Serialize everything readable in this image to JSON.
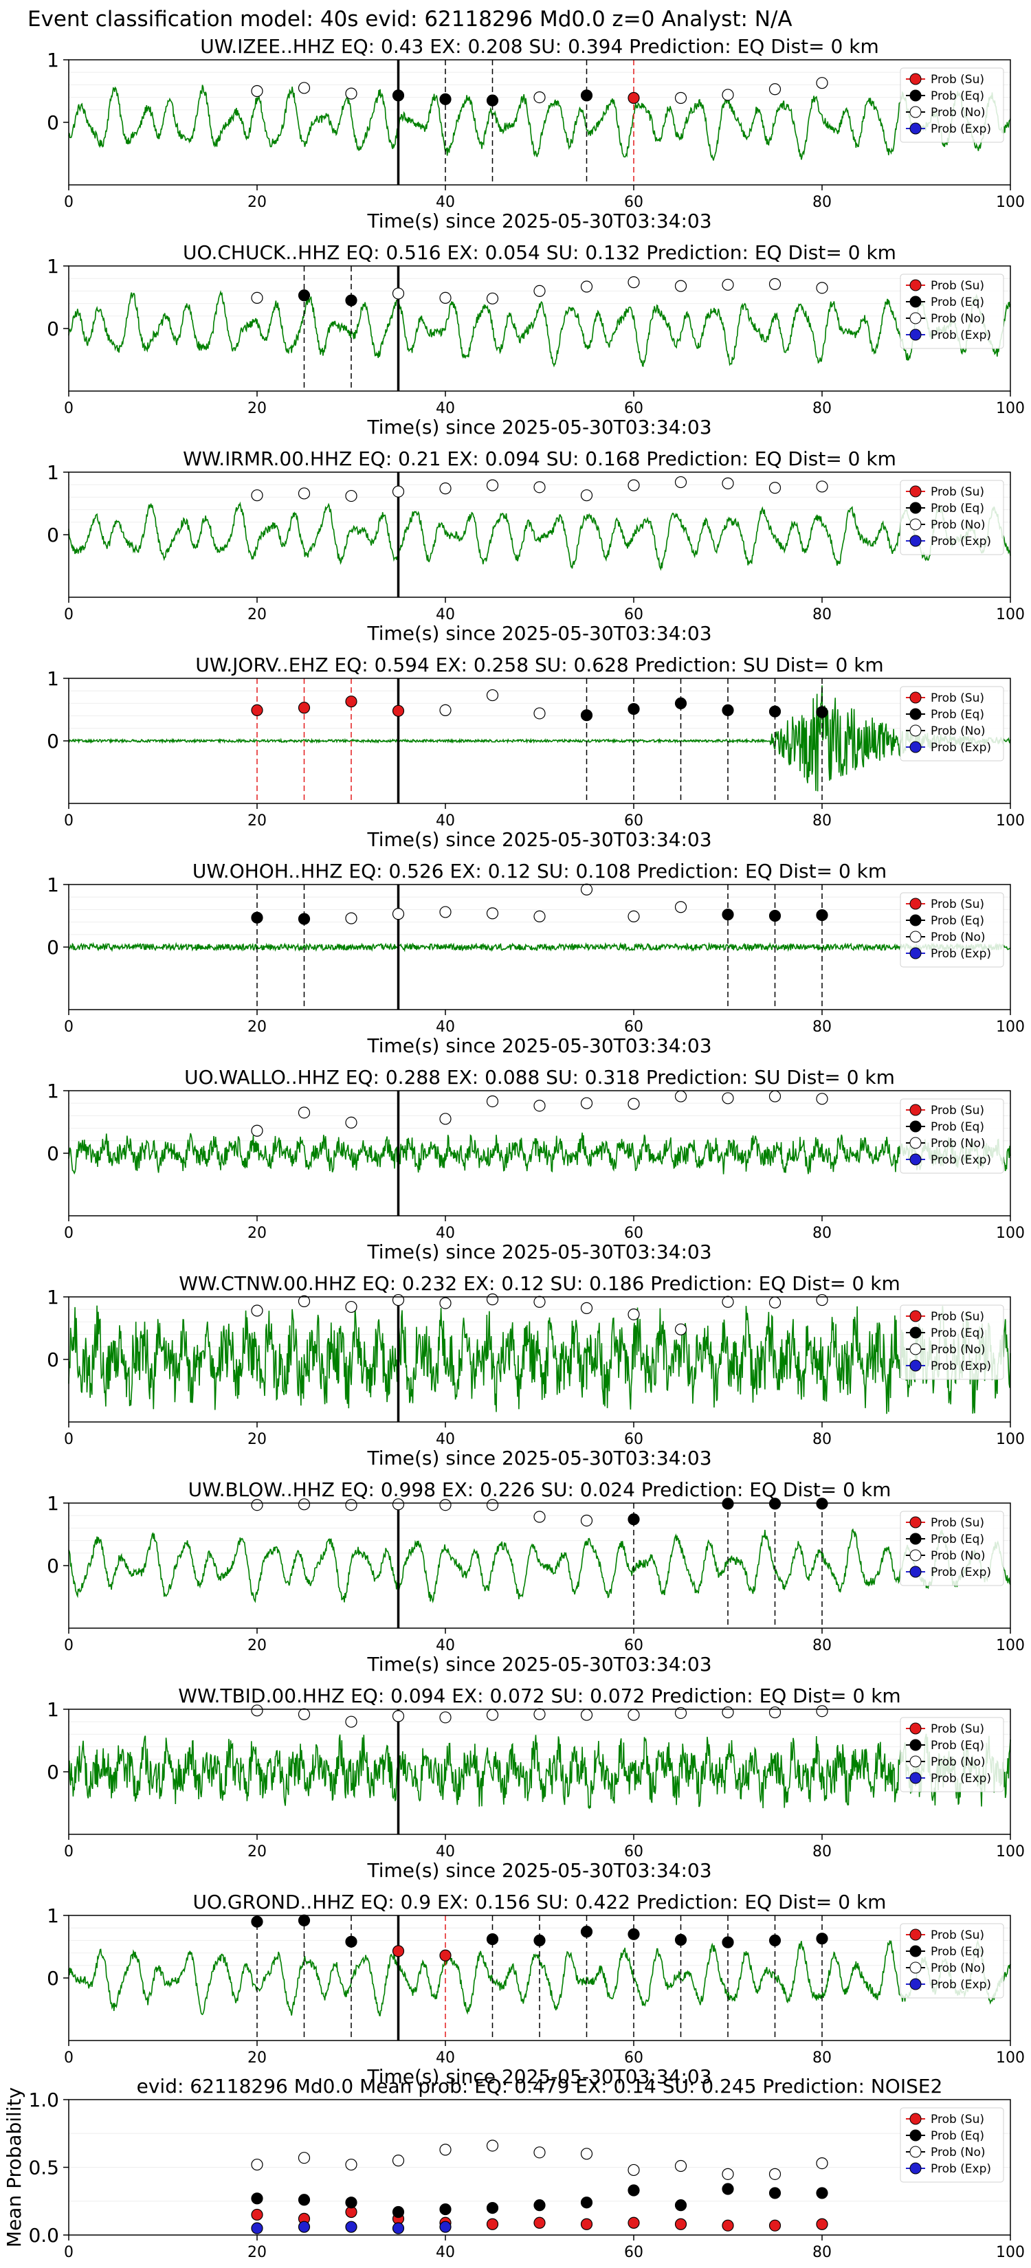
{
  "figure_title": "Event classification model: 40s evid: 62118296 Md0.0 z=0 Analyst: N/A",
  "legend_labels": [
    "Prob (Su)",
    "Prob (Eq)",
    "Prob (No)",
    "Prob (Exp)"
  ],
  "colors": {
    "su": "#e31a1c",
    "eq": "#000000",
    "no": "#ffffff",
    "exp": "#1f1fcf",
    "waveform": "#008000",
    "pick": "#000000"
  },
  "chart_data": [
    {
      "type": "scatter",
      "title": "UW.IZEE..HHZ   EQ: 0.43  EX: 0.208  SU: 0.394   Prediction: EQ    Dist= 0 km",
      "xlabel": "Time(s) since 2025-05-30T03:34:03",
      "xlim": [
        0,
        100
      ],
      "ylim": [
        -1,
        1
      ],
      "x_ticks": [
        "0",
        "20",
        "40",
        "60",
        "80",
        "100"
      ],
      "y_ticks": [
        "0",
        "1"
      ],
      "pick_time": 35,
      "waveform": {
        "style": "smooth",
        "amplitude": 0.55
      },
      "points": [
        {
          "x": 20,
          "y": 0.5,
          "class": "no"
        },
        {
          "x": 25,
          "y": 0.55,
          "class": "no"
        },
        {
          "x": 30,
          "y": 0.46,
          "class": "no"
        },
        {
          "x": 35,
          "y": 0.43,
          "class": "eq"
        },
        {
          "x": 40,
          "y": 0.37,
          "class": "eq"
        },
        {
          "x": 45,
          "y": 0.35,
          "class": "eq"
        },
        {
          "x": 50,
          "y": 0.4,
          "class": "no"
        },
        {
          "x": 55,
          "y": 0.43,
          "class": "eq"
        },
        {
          "x": 60,
          "y": 0.39,
          "class": "su"
        },
        {
          "x": 65,
          "y": 0.39,
          "class": "no"
        },
        {
          "x": 70,
          "y": 0.44,
          "class": "no"
        },
        {
          "x": 75,
          "y": 0.53,
          "class": "no"
        },
        {
          "x": 80,
          "y": 0.63,
          "class": "no"
        }
      ]
    },
    {
      "type": "scatter",
      "title": "UO.CHUCK..HHZ   EQ: 0.516  EX: 0.054  SU: 0.132   Prediction: EQ    Dist= 0 km",
      "xlabel": "Time(s) since 2025-05-30T03:34:03",
      "xlim": [
        0,
        100
      ],
      "ylim": [
        -1,
        1
      ],
      "x_ticks": [
        "0",
        "20",
        "40",
        "60",
        "80",
        "100"
      ],
      "y_ticks": [
        "0",
        "1"
      ],
      "pick_time": 35,
      "waveform": {
        "style": "smooth",
        "amplitude": 0.55
      },
      "points": [
        {
          "x": 20,
          "y": 0.49,
          "class": "no"
        },
        {
          "x": 25,
          "y": 0.53,
          "class": "eq"
        },
        {
          "x": 30,
          "y": 0.45,
          "class": "eq"
        },
        {
          "x": 35,
          "y": 0.56,
          "class": "no"
        },
        {
          "x": 40,
          "y": 0.49,
          "class": "no"
        },
        {
          "x": 45,
          "y": 0.48,
          "class": "no"
        },
        {
          "x": 50,
          "y": 0.6,
          "class": "no"
        },
        {
          "x": 55,
          "y": 0.67,
          "class": "no"
        },
        {
          "x": 60,
          "y": 0.74,
          "class": "no"
        },
        {
          "x": 65,
          "y": 0.68,
          "class": "no"
        },
        {
          "x": 70,
          "y": 0.7,
          "class": "no"
        },
        {
          "x": 75,
          "y": 0.71,
          "class": "no"
        },
        {
          "x": 80,
          "y": 0.65,
          "class": "no"
        }
      ]
    },
    {
      "type": "scatter",
      "title": "WW.IRMR.00.HHZ   EQ: 0.21  EX: 0.094  SU: 0.168   Prediction: EQ    Dist= 0 km",
      "xlabel": "Time(s) since 2025-05-30T03:34:03",
      "xlim": [
        0,
        100
      ],
      "ylim": [
        -1,
        1
      ],
      "x_ticks": [
        "0",
        "20",
        "40",
        "60",
        "80",
        "100"
      ],
      "y_ticks": [
        "0",
        "1"
      ],
      "pick_time": 35,
      "waveform": {
        "style": "smooth",
        "amplitude": 0.5
      },
      "points": [
        {
          "x": 20,
          "y": 0.63,
          "class": "no"
        },
        {
          "x": 25,
          "y": 0.66,
          "class": "no"
        },
        {
          "x": 30,
          "y": 0.62,
          "class": "no"
        },
        {
          "x": 35,
          "y": 0.69,
          "class": "no"
        },
        {
          "x": 40,
          "y": 0.74,
          "class": "no"
        },
        {
          "x": 45,
          "y": 0.79,
          "class": "no"
        },
        {
          "x": 50,
          "y": 0.76,
          "class": "no"
        },
        {
          "x": 55,
          "y": 0.63,
          "class": "no"
        },
        {
          "x": 60,
          "y": 0.79,
          "class": "no"
        },
        {
          "x": 65,
          "y": 0.84,
          "class": "no"
        },
        {
          "x": 70,
          "y": 0.82,
          "class": "no"
        },
        {
          "x": 75,
          "y": 0.75,
          "class": "no"
        },
        {
          "x": 80,
          "y": 0.77,
          "class": "no"
        }
      ]
    },
    {
      "type": "scatter",
      "title": "UW.JORV..EHZ   EQ: 0.594  EX: 0.258  SU: 0.628   Prediction: SU    Dist= 0 km",
      "xlabel": "Time(s) since 2025-05-30T03:34:03",
      "xlim": [
        0,
        100
      ],
      "ylim": [
        -1,
        1
      ],
      "x_ticks": [
        "0",
        "20",
        "40",
        "60",
        "80",
        "100"
      ],
      "y_ticks": [
        "0",
        "1"
      ],
      "pick_time": 35,
      "waveform": {
        "style": "flat_burst",
        "amplitude": 0.02,
        "burst_start": 74,
        "burst_peak": 80,
        "burst_amplitude": 0.9
      },
      "points": [
        {
          "x": 20,
          "y": 0.49,
          "class": "su"
        },
        {
          "x": 25,
          "y": 0.53,
          "class": "su"
        },
        {
          "x": 30,
          "y": 0.63,
          "class": "su"
        },
        {
          "x": 35,
          "y": 0.48,
          "class": "su"
        },
        {
          "x": 40,
          "y": 0.49,
          "class": "no"
        },
        {
          "x": 45,
          "y": 0.73,
          "class": "no"
        },
        {
          "x": 50,
          "y": 0.44,
          "class": "no"
        },
        {
          "x": 55,
          "y": 0.41,
          "class": "eq"
        },
        {
          "x": 60,
          "y": 0.51,
          "class": "eq"
        },
        {
          "x": 65,
          "y": 0.6,
          "class": "eq"
        },
        {
          "x": 70,
          "y": 0.49,
          "class": "eq"
        },
        {
          "x": 75,
          "y": 0.47,
          "class": "eq"
        },
        {
          "x": 80,
          "y": 0.46,
          "class": "eq"
        }
      ]
    },
    {
      "type": "scatter",
      "title": "UW.OHOH..HHZ   EQ: 0.526  EX: 0.12  SU: 0.108   Prediction: EQ    Dist= 0 km",
      "xlabel": "Time(s) since 2025-05-30T03:34:03",
      "xlim": [
        0,
        100
      ],
      "ylim": [
        -1,
        1
      ],
      "x_ticks": [
        "0",
        "20",
        "40",
        "60",
        "80",
        "100"
      ],
      "y_ticks": [
        "0",
        "1"
      ],
      "pick_time": 35,
      "waveform": {
        "style": "flat",
        "amplitude": 0.05
      },
      "points": [
        {
          "x": 20,
          "y": 0.47,
          "class": "eq"
        },
        {
          "x": 25,
          "y": 0.45,
          "class": "eq"
        },
        {
          "x": 30,
          "y": 0.46,
          "class": "no"
        },
        {
          "x": 35,
          "y": 0.53,
          "class": "no"
        },
        {
          "x": 40,
          "y": 0.56,
          "class": "no"
        },
        {
          "x": 45,
          "y": 0.54,
          "class": "no"
        },
        {
          "x": 50,
          "y": 0.49,
          "class": "no"
        },
        {
          "x": 55,
          "y": 0.92,
          "class": "no"
        },
        {
          "x": 60,
          "y": 0.49,
          "class": "no"
        },
        {
          "x": 65,
          "y": 0.64,
          "class": "no"
        },
        {
          "x": 70,
          "y": 0.52,
          "class": "eq"
        },
        {
          "x": 75,
          "y": 0.5,
          "class": "eq"
        },
        {
          "x": 80,
          "y": 0.51,
          "class": "eq"
        }
      ]
    },
    {
      "type": "scatter",
      "title": "UO.WALLO..HHZ   EQ: 0.288  EX: 0.088  SU: 0.318   Prediction: SU    Dist= 0 km",
      "xlabel": "Time(s) since 2025-05-30T03:34:03",
      "xlim": [
        0,
        100
      ],
      "ylim": [
        -1,
        1
      ],
      "x_ticks": [
        "0",
        "20",
        "40",
        "60",
        "80",
        "100"
      ],
      "y_ticks": [
        "0",
        "1"
      ],
      "pick_time": 35,
      "waveform": {
        "style": "noisy",
        "amplitude": 0.3
      },
      "points": [
        {
          "x": 20,
          "y": 0.36,
          "class": "no"
        },
        {
          "x": 25,
          "y": 0.65,
          "class": "no"
        },
        {
          "x": 30,
          "y": 0.49,
          "class": "no"
        },
        {
          "x": 40,
          "y": 0.55,
          "class": "no"
        },
        {
          "x": 45,
          "y": 0.83,
          "class": "no"
        },
        {
          "x": 50,
          "y": 0.76,
          "class": "no"
        },
        {
          "x": 55,
          "y": 0.8,
          "class": "no"
        },
        {
          "x": 60,
          "y": 0.79,
          "class": "no"
        },
        {
          "x": 65,
          "y": 0.91,
          "class": "no"
        },
        {
          "x": 70,
          "y": 0.88,
          "class": "no"
        },
        {
          "x": 75,
          "y": 0.91,
          "class": "no"
        },
        {
          "x": 80,
          "y": 0.87,
          "class": "no"
        }
      ]
    },
    {
      "type": "scatter",
      "title": "WW.CTNW.00.HHZ   EQ: 0.232  EX: 0.12  SU: 0.186   Prediction: EQ    Dist= 0 km",
      "xlabel": "Time(s) since 2025-05-30T03:34:03",
      "xlim": [
        0,
        100
      ],
      "ylim": [
        -1,
        1
      ],
      "x_ticks": [
        "0",
        "20",
        "40",
        "60",
        "80",
        "100"
      ],
      "y_ticks": [
        "0",
        "1"
      ],
      "pick_time": 35,
      "waveform": {
        "style": "noisy",
        "amplitude": 0.8
      },
      "points": [
        {
          "x": 20,
          "y": 0.78,
          "class": "no"
        },
        {
          "x": 25,
          "y": 0.93,
          "class": "no"
        },
        {
          "x": 30,
          "y": 0.84,
          "class": "no"
        },
        {
          "x": 35,
          "y": 0.95,
          "class": "no"
        },
        {
          "x": 40,
          "y": 0.9,
          "class": "no"
        },
        {
          "x": 45,
          "y": 0.96,
          "class": "no"
        },
        {
          "x": 50,
          "y": 0.92,
          "class": "no"
        },
        {
          "x": 55,
          "y": 0.82,
          "class": "no"
        },
        {
          "x": 60,
          "y": 0.72,
          "class": "no"
        },
        {
          "x": 65,
          "y": 0.48,
          "class": "no"
        },
        {
          "x": 70,
          "y": 0.92,
          "class": "no"
        },
        {
          "x": 75,
          "y": 0.91,
          "class": "no"
        },
        {
          "x": 80,
          "y": 0.95,
          "class": "no"
        }
      ]
    },
    {
      "type": "scatter",
      "title": "UW.BLOW..HHZ   EQ: 0.998  EX: 0.226  SU: 0.024   Prediction: EQ    Dist= 0 km",
      "xlabel": "Time(s) since 2025-05-30T03:34:03",
      "xlim": [
        0,
        100
      ],
      "ylim": [
        -1,
        1
      ],
      "x_ticks": [
        "0",
        "20",
        "40",
        "60",
        "80",
        "100"
      ],
      "y_ticks": [
        "0",
        "1"
      ],
      "pick_time": 35,
      "waveform": {
        "style": "smooth",
        "amplitude": 0.55
      },
      "points": [
        {
          "x": 20,
          "y": 0.97,
          "class": "no"
        },
        {
          "x": 25,
          "y": 0.98,
          "class": "no"
        },
        {
          "x": 30,
          "y": 0.97,
          "class": "no"
        },
        {
          "x": 35,
          "y": 0.98,
          "class": "no"
        },
        {
          "x": 40,
          "y": 0.97,
          "class": "no"
        },
        {
          "x": 45,
          "y": 0.97,
          "class": "no"
        },
        {
          "x": 50,
          "y": 0.78,
          "class": "no"
        },
        {
          "x": 55,
          "y": 0.72,
          "class": "no"
        },
        {
          "x": 60,
          "y": 0.74,
          "class": "eq"
        },
        {
          "x": 70,
          "y": 0.99,
          "class": "eq"
        },
        {
          "x": 75,
          "y": 0.99,
          "class": "eq"
        },
        {
          "x": 80,
          "y": 0.99,
          "class": "eq"
        }
      ]
    },
    {
      "type": "scatter",
      "title": "WW.TBID.00.HHZ   EQ: 0.094  EX: 0.072  SU: 0.072   Prediction: EQ    Dist= 0 km",
      "xlabel": "Time(s) since 2025-05-30T03:34:03",
      "xlim": [
        0,
        100
      ],
      "ylim": [
        -1,
        1
      ],
      "x_ticks": [
        "0",
        "20",
        "40",
        "60",
        "80",
        "100"
      ],
      "y_ticks": [
        "0",
        "1"
      ],
      "pick_time": 35,
      "waveform": {
        "style": "noisy",
        "amplitude": 0.55
      },
      "points": [
        {
          "x": 20,
          "y": 0.98,
          "class": "no"
        },
        {
          "x": 25,
          "y": 0.92,
          "class": "no"
        },
        {
          "x": 30,
          "y": 0.8,
          "class": "no"
        },
        {
          "x": 35,
          "y": 0.89,
          "class": "no"
        },
        {
          "x": 40,
          "y": 0.87,
          "class": "no"
        },
        {
          "x": 45,
          "y": 0.91,
          "class": "no"
        },
        {
          "x": 50,
          "y": 0.92,
          "class": "no"
        },
        {
          "x": 55,
          "y": 0.91,
          "class": "no"
        },
        {
          "x": 60,
          "y": 0.91,
          "class": "no"
        },
        {
          "x": 65,
          "y": 0.94,
          "class": "no"
        },
        {
          "x": 70,
          "y": 0.95,
          "class": "no"
        },
        {
          "x": 75,
          "y": 0.95,
          "class": "no"
        },
        {
          "x": 80,
          "y": 0.97,
          "class": "no"
        }
      ]
    },
    {
      "type": "scatter",
      "title": "UO.GROND..HHZ   EQ: 0.9  EX: 0.156  SU: 0.422   Prediction: EQ    Dist= 0 km",
      "xlabel": "Time(s) since 2025-05-30T03:34:03",
      "xlim": [
        0,
        100
      ],
      "ylim": [
        -1,
        1
      ],
      "x_ticks": [
        "0",
        "20",
        "40",
        "60",
        "80",
        "100"
      ],
      "y_ticks": [
        "0",
        "1"
      ],
      "pick_time": 35,
      "waveform": {
        "style": "smooth",
        "amplitude": 0.55
      },
      "points": [
        {
          "x": 20,
          "y": 0.9,
          "class": "eq"
        },
        {
          "x": 25,
          "y": 0.92,
          "class": "eq"
        },
        {
          "x": 30,
          "y": 0.58,
          "class": "eq"
        },
        {
          "x": 35,
          "y": 0.43,
          "class": "su"
        },
        {
          "x": 40,
          "y": 0.36,
          "class": "su"
        },
        {
          "x": 45,
          "y": 0.62,
          "class": "eq"
        },
        {
          "x": 50,
          "y": 0.6,
          "class": "eq"
        },
        {
          "x": 55,
          "y": 0.74,
          "class": "eq"
        },
        {
          "x": 60,
          "y": 0.7,
          "class": "eq"
        },
        {
          "x": 65,
          "y": 0.61,
          "class": "eq"
        },
        {
          "x": 70,
          "y": 0.57,
          "class": "eq"
        },
        {
          "x": 75,
          "y": 0.6,
          "class": "eq"
        },
        {
          "x": 80,
          "y": 0.63,
          "class": "eq"
        }
      ]
    },
    {
      "type": "scatter",
      "title": "evid: 62118296  Md0.0   Mean prob:   EQ: 0.479  EX: 0.14  SU: 0.245   Prediction: NOISE2",
      "xlabel": "",
      "ylabel": "Mean Probability",
      "xlim": [
        0,
        100
      ],
      "ylim": [
        0,
        1
      ],
      "x_ticks": [
        "0",
        "20",
        "40",
        "60",
        "80",
        "100"
      ],
      "y_ticks": [
        "0.0",
        "0.5",
        "1.0"
      ],
      "series": [
        {
          "name": "Prob (Su)",
          "class": "su",
          "x": [
            20,
            25,
            30,
            35,
            40,
            45,
            50,
            55,
            60,
            65,
            70,
            75,
            80
          ],
          "y": [
            0.15,
            0.12,
            0.17,
            0.12,
            0.09,
            0.08,
            0.09,
            0.08,
            0.09,
            0.08,
            0.07,
            0.07,
            0.08
          ]
        },
        {
          "name": "Prob (Eq)",
          "class": "eq",
          "x": [
            20,
            25,
            30,
            35,
            40,
            45,
            50,
            55,
            60,
            65,
            70,
            75,
            80
          ],
          "y": [
            0.27,
            0.26,
            0.24,
            0.17,
            0.19,
            0.2,
            0.22,
            0.24,
            0.33,
            0.22,
            0.34,
            0.31,
            0.31
          ]
        },
        {
          "name": "Prob (No)",
          "class": "no",
          "x": [
            20,
            25,
            30,
            35,
            40,
            45,
            50,
            55,
            60,
            65,
            70,
            75,
            80
          ],
          "y": [
            0.52,
            0.57,
            0.52,
            0.55,
            0.63,
            0.66,
            0.61,
            0.6,
            0.48,
            0.51,
            0.45,
            0.45,
            0.53
          ]
        },
        {
          "name": "Prob (Exp)",
          "class": "exp",
          "x": [
            20,
            25,
            30,
            35,
            40
          ],
          "y": [
            0.05,
            0.06,
            0.06,
            0.05,
            0.06
          ]
        }
      ]
    }
  ]
}
